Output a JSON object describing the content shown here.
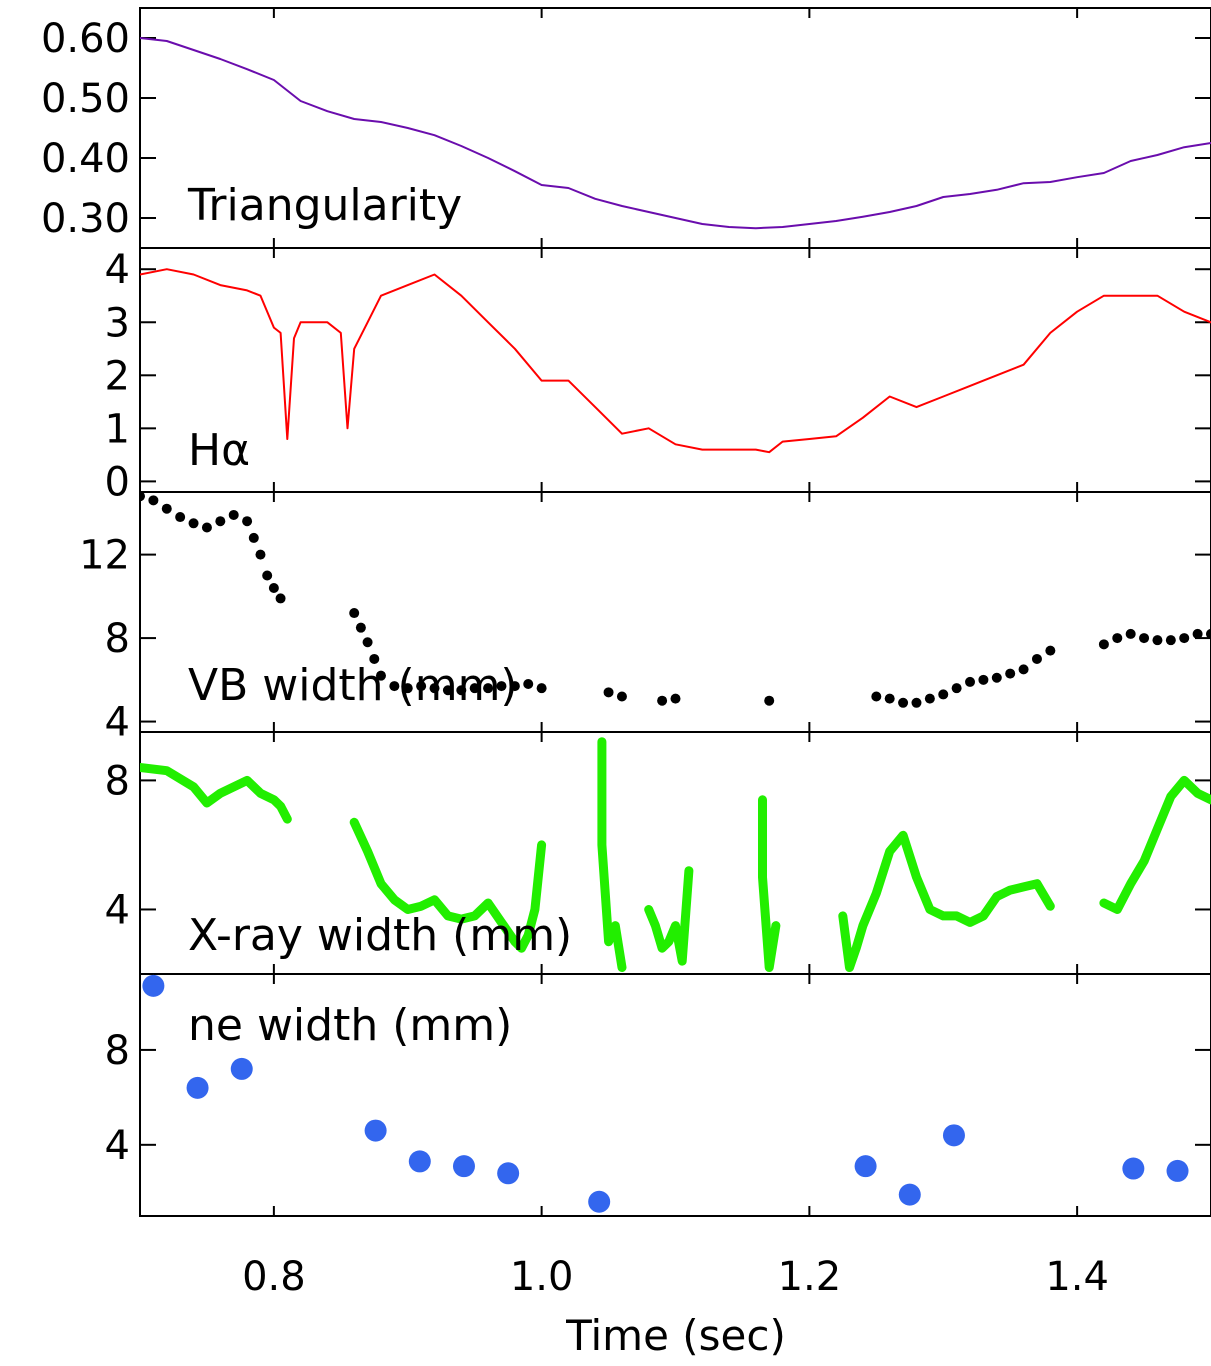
{
  "chart_data": [
    {
      "type": "line",
      "label": "Triangularity",
      "color": "#6a0dad",
      "ylim": [
        0.25,
        0.65
      ],
      "yticks": [
        0.3,
        0.4,
        0.5,
        0.6
      ],
      "ytick_labels": [
        "0.30",
        "0.40",
        "0.50",
        "0.60"
      ],
      "series": [
        {
          "x": [
            0.7,
            0.72,
            0.74,
            0.76,
            0.78,
            0.8,
            0.82,
            0.84,
            0.86,
            0.88,
            0.9,
            0.92,
            0.94,
            0.96,
            0.98,
            1.0,
            1.02,
            1.04,
            1.06,
            1.08,
            1.1,
            1.12,
            1.14,
            1.16,
            1.18,
            1.2,
            1.22,
            1.24,
            1.26,
            1.28,
            1.3,
            1.32,
            1.34,
            1.36,
            1.38,
            1.4,
            1.42,
            1.44,
            1.46,
            1.48,
            1.5
          ],
          "values": [
            0.6,
            0.595,
            0.58,
            0.565,
            0.548,
            0.53,
            0.495,
            0.478,
            0.465,
            0.46,
            0.45,
            0.438,
            0.42,
            0.4,
            0.378,
            0.355,
            0.35,
            0.332,
            0.32,
            0.31,
            0.3,
            0.29,
            0.285,
            0.283,
            0.285,
            0.29,
            0.295,
            0.302,
            0.31,
            0.32,
            0.335,
            0.34,
            0.347,
            0.358,
            0.36,
            0.368,
            0.375,
            0.395,
            0.405,
            0.418,
            0.425
          ]
        }
      ]
    },
    {
      "type": "line",
      "label": "Hα",
      "color": "#ff0000",
      "ylim": [
        -0.2,
        4.4
      ],
      "yticks": [
        0,
        1,
        2,
        3,
        4
      ],
      "ytick_labels": [
        "0",
        "1",
        "2",
        "3",
        "4"
      ],
      "series": [
        {
          "x": [
            0.7,
            0.72,
            0.74,
            0.76,
            0.78,
            0.79,
            0.8,
            0.805,
            0.81,
            0.815,
            0.82,
            0.83,
            0.84,
            0.85,
            0.855,
            0.86,
            0.87,
            0.88,
            0.9,
            0.92,
            0.94,
            0.96,
            0.98,
            1.0,
            1.02,
            1.04,
            1.06,
            1.08,
            1.1,
            1.12,
            1.14,
            1.16,
            1.17,
            1.18,
            1.2,
            1.22,
            1.24,
            1.26,
            1.28,
            1.3,
            1.32,
            1.34,
            1.36,
            1.38,
            1.4,
            1.42,
            1.44,
            1.46,
            1.48,
            1.5
          ],
          "values": [
            3.9,
            4.0,
            3.9,
            3.7,
            3.6,
            3.5,
            2.9,
            2.8,
            0.8,
            2.7,
            3.0,
            3.0,
            3.0,
            2.8,
            1.0,
            2.5,
            3.0,
            3.5,
            3.7,
            3.9,
            3.5,
            3.0,
            2.5,
            1.9,
            1.9,
            1.4,
            0.9,
            1.0,
            0.7,
            0.6,
            0.6,
            0.6,
            0.55,
            0.75,
            0.8,
            0.85,
            1.2,
            1.6,
            1.4,
            1.6,
            1.8,
            2.0,
            2.2,
            2.8,
            3.2,
            3.5,
            3.5,
            3.5,
            3.2,
            3.0
          ]
        }
      ]
    },
    {
      "type": "scatter",
      "label": "VB width (mm)",
      "color": "#000000",
      "ylim": [
        3.5,
        15.0
      ],
      "yticks": [
        4,
        8,
        12
      ],
      "ytick_labels": [
        "4",
        "8",
        "12"
      ],
      "series": [
        {
          "x": [
            0.7,
            0.71,
            0.72,
            0.73,
            0.74,
            0.75,
            0.76,
            0.77,
            0.78,
            0.785,
            0.79,
            0.795,
            0.8,
            0.805,
            0.86,
            0.865,
            0.87,
            0.875,
            0.88,
            0.89,
            0.9,
            0.91,
            0.92,
            0.93,
            0.94,
            0.95,
            0.96,
            0.97,
            0.98,
            0.99,
            1.0,
            1.05,
            1.06,
            1.09,
            1.1,
            1.17,
            1.25,
            1.26,
            1.27,
            1.28,
            1.29,
            1.3,
            1.31,
            1.32,
            1.33,
            1.34,
            1.35,
            1.36,
            1.37,
            1.38,
            1.42,
            1.43,
            1.44,
            1.45,
            1.46,
            1.47,
            1.48,
            1.49,
            1.5
          ],
          "values": [
            14.8,
            14.6,
            14.2,
            13.8,
            13.5,
            13.3,
            13.6,
            13.9,
            13.6,
            12.8,
            12.0,
            11.0,
            10.4,
            9.9,
            9.2,
            8.5,
            7.8,
            7.0,
            6.2,
            5.7,
            5.6,
            5.7,
            5.6,
            5.5,
            5.5,
            5.6,
            5.6,
            5.7,
            5.7,
            5.8,
            5.6,
            5.4,
            5.2,
            5.0,
            5.1,
            5.0,
            5.2,
            5.1,
            4.9,
            4.9,
            5.1,
            5.3,
            5.6,
            5.9,
            6.0,
            6.1,
            6.3,
            6.5,
            7.0,
            7.4,
            7.7,
            8.0,
            8.2,
            8.0,
            7.9,
            7.9,
            8.0,
            8.2,
            8.2
          ]
        }
      ]
    },
    {
      "type": "line",
      "label": "X-ray width (mm)",
      "color": "#22ee00",
      "ylim": [
        2.0,
        9.5
      ],
      "yticks": [
        4,
        8
      ],
      "ytick_labels": [
        "4",
        "8"
      ],
      "series": [
        {
          "x": [
            0.7,
            0.72,
            0.74,
            0.75,
            0.76,
            0.78,
            0.79,
            0.8,
            0.805,
            0.81
          ],
          "values": [
            8.4,
            8.3,
            7.8,
            7.3,
            7.6,
            8.0,
            7.6,
            7.4,
            7.2,
            6.8
          ]
        },
        {
          "x": [
            0.86,
            0.87,
            0.88,
            0.89,
            0.9,
            0.91,
            0.92,
            0.93,
            0.94,
            0.95,
            0.96,
            0.97,
            0.98,
            0.985,
            0.99,
            0.995,
            1.0
          ],
          "values": [
            6.7,
            5.8,
            4.8,
            4.3,
            4.0,
            4.1,
            4.3,
            3.8,
            3.7,
            3.8,
            4.2,
            3.6,
            3.0,
            2.8,
            3.2,
            4.0,
            6.0
          ]
        },
        {
          "x": [
            1.045,
            1.045,
            1.05,
            1.055,
            1.06
          ],
          "values": [
            9.2,
            6.0,
            3.0,
            3.5,
            2.2
          ]
        },
        {
          "x": [
            1.08,
            1.085,
            1.09,
            1.095,
            1.1,
            1.105,
            1.11
          ],
          "values": [
            4.0,
            3.5,
            2.8,
            3.0,
            3.5,
            2.4,
            5.2
          ]
        },
        {
          "x": [
            1.165,
            1.165,
            1.17,
            1.175
          ],
          "values": [
            7.4,
            5.0,
            2.2,
            3.5
          ]
        },
        {
          "x": [
            1.225,
            1.23,
            1.235,
            1.24,
            1.25,
            1.26,
            1.27,
            1.28,
            1.29,
            1.3,
            1.31,
            1.32,
            1.33,
            1.34,
            1.35,
            1.36,
            1.37,
            1.38
          ],
          "values": [
            3.8,
            2.2,
            2.8,
            3.5,
            4.5,
            5.8,
            6.3,
            5.0,
            4.0,
            3.8,
            3.8,
            3.6,
            3.8,
            4.4,
            4.6,
            4.7,
            4.8,
            4.1
          ]
        },
        {
          "x": [
            1.42,
            1.43,
            1.44,
            1.45,
            1.46,
            1.47,
            1.48,
            1.49,
            1.5
          ],
          "values": [
            4.2,
            4.0,
            4.8,
            5.5,
            6.5,
            7.5,
            8.0,
            7.6,
            7.4
          ]
        }
      ]
    },
    {
      "type": "scatter",
      "label": "ne width (mm)",
      "color": "#3366ee",
      "ylim": [
        1.0,
        11.2
      ],
      "yticks": [
        4,
        8
      ],
      "ytick_labels": [
        "4",
        "8"
      ],
      "series": [
        {
          "x": [
            0.71,
            0.743,
            0.776,
            0.876,
            0.909,
            0.942,
            0.975,
            1.043,
            1.242,
            1.275,
            1.308,
            1.442,
            1.475
          ],
          "values": [
            10.7,
            6.4,
            7.2,
            4.6,
            3.3,
            3.1,
            2.8,
            1.6,
            3.1,
            1.9,
            4.4,
            3.0,
            2.9
          ]
        }
      ]
    }
  ],
  "xaxis": {
    "label": "Time (sec)",
    "xlim": [
      0.7,
      1.5
    ],
    "ticks": [
      0.8,
      1.0,
      1.2,
      1.4
    ],
    "tick_labels": [
      "0.8",
      "1.0",
      "1.2",
      "1.4"
    ]
  }
}
